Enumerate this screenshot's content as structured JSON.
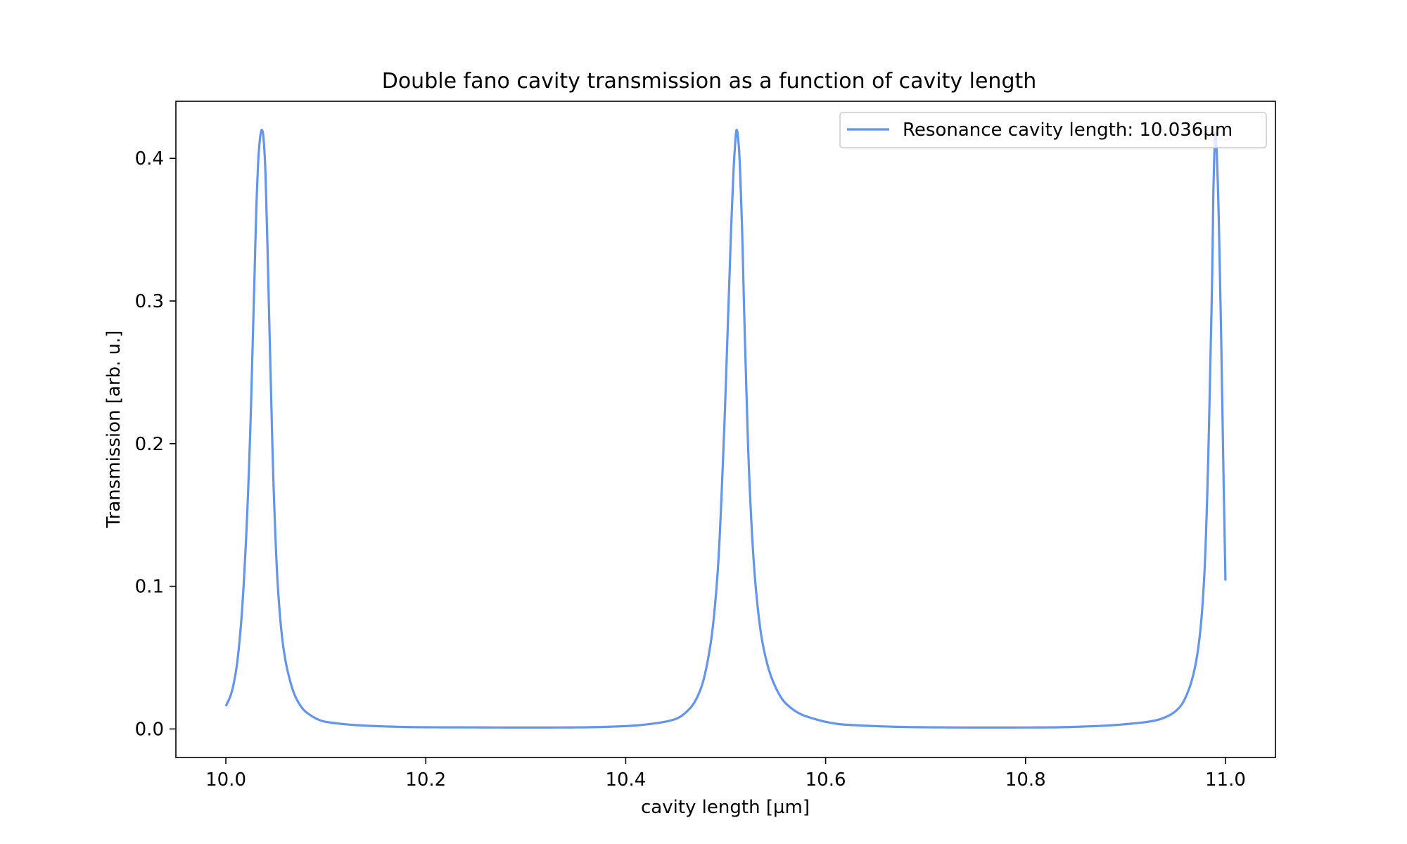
{
  "chart_data": {
    "type": "line",
    "title": "Double fano cavity transmission as a function of cavity length",
    "xlabel": "cavity length [µm]",
    "ylabel": "Transmission [arb. u.]",
    "xlim": [
      9.95,
      11.05
    ],
    "ylim": [
      -0.02,
      0.44
    ],
    "xticks": [
      10.0,
      10.2,
      10.4,
      10.6,
      10.8,
      11.0
    ],
    "xtick_labels": [
      "10.0",
      "10.2",
      "10.4",
      "10.6",
      "10.8",
      "11.0"
    ],
    "yticks": [
      0.0,
      0.1,
      0.2,
      0.3,
      0.4
    ],
    "ytick_labels": [
      "0.0",
      "0.1",
      "0.2",
      "0.3",
      "0.4"
    ],
    "grid": false,
    "legend_position": "top-right",
    "series": [
      {
        "name": "Resonance cavity length: 10.036µm",
        "color": "#6495ed",
        "x": [
          10.0,
          10.005,
          10.01,
          10.015,
          10.02,
          10.024,
          10.028,
          10.031,
          10.033,
          10.035,
          10.036,
          10.037,
          10.039,
          10.041,
          10.044,
          10.048,
          10.052,
          10.057,
          10.062,
          10.07,
          10.08,
          10.1,
          10.15,
          10.2,
          10.25,
          10.3,
          10.35,
          10.4,
          10.43,
          10.45,
          10.465,
          10.475,
          10.485,
          10.492,
          10.498,
          10.503,
          10.506,
          10.509,
          10.511,
          10.513,
          10.516,
          10.519,
          10.524,
          10.53,
          10.537,
          10.547,
          10.56,
          10.58,
          10.62,
          10.7,
          10.76,
          10.82,
          10.87,
          10.91,
          10.93,
          10.945,
          10.955,
          10.963,
          10.97,
          10.975,
          10.979,
          10.982,
          10.985,
          10.987,
          10.988,
          10.99,
          10.992,
          10.995,
          10.998,
          11.0
        ],
        "y": [
          0.016,
          0.024,
          0.04,
          0.072,
          0.13,
          0.2,
          0.3,
          0.375,
          0.405,
          0.418,
          0.42,
          0.418,
          0.4,
          0.355,
          0.27,
          0.165,
          0.1,
          0.06,
          0.04,
          0.022,
          0.012,
          0.005,
          0.002,
          0.0012,
          0.0011,
          0.001,
          0.0011,
          0.002,
          0.004,
          0.007,
          0.015,
          0.028,
          0.06,
          0.11,
          0.2,
          0.3,
          0.36,
          0.405,
          0.42,
          0.41,
          0.36,
          0.28,
          0.17,
          0.1,
          0.06,
          0.034,
          0.018,
          0.009,
          0.003,
          0.0012,
          0.001,
          0.0011,
          0.002,
          0.004,
          0.006,
          0.01,
          0.016,
          0.027,
          0.045,
          0.07,
          0.11,
          0.17,
          0.26,
          0.33,
          0.38,
          0.418,
          0.39,
          0.3,
          0.18,
          0.104
        ]
      }
    ]
  }
}
